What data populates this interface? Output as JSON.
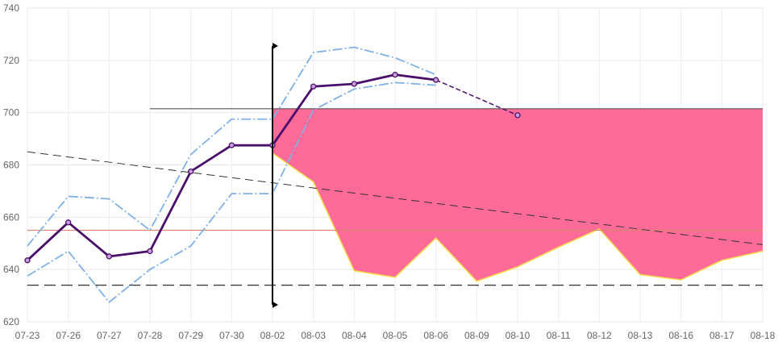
{
  "chart_data": {
    "type": "line",
    "categories": [
      "07-23",
      "07-26",
      "07-27",
      "07-28",
      "07-29",
      "07-30",
      "08-02",
      "08-03",
      "08-04",
      "08-05",
      "08-06",
      "08-09",
      "08-10",
      "08-11",
      "08-12",
      "08-13",
      "08-16",
      "08-17",
      "08-18"
    ],
    "ylim": [
      620,
      740
    ],
    "yticks": [
      620,
      640,
      660,
      680,
      700,
      720,
      740
    ],
    "grid": true,
    "series": [
      {
        "role": "main",
        "color": "#4a0f6b",
        "values": [
          643.5,
          658,
          645,
          647,
          677.5,
          687.5,
          687.5,
          710,
          711,
          714.5,
          712.5,
          null,
          null,
          null,
          null,
          null,
          null,
          null,
          null
        ]
      },
      {
        "role": "forecast",
        "color": "#4a0f6b",
        "values": [
          null,
          null,
          null,
          null,
          null,
          null,
          null,
          null,
          null,
          null,
          712.5,
          null,
          699,
          null,
          null,
          null,
          null,
          null,
          null
        ]
      },
      {
        "role": "band-upper",
        "color": "#7fb0e6",
        "values": [
          649,
          668,
          667,
          655,
          684,
          697.5,
          697.5,
          723,
          725,
          721,
          714.5,
          null,
          null,
          null,
          null,
          null,
          null,
          null,
          null
        ]
      },
      {
        "role": "band-lower",
        "color": "#7fb0e6",
        "values": [
          637.5,
          647,
          627.5,
          640,
          649,
          669,
          669,
          701,
          709,
          711.5,
          710.5,
          null,
          null,
          null,
          null,
          null,
          null,
          null,
          null
        ]
      },
      {
        "role": "filled-area-bottom",
        "color": "#ff6b98",
        "edge_color": "#f4e04d",
        "values": [
          null,
          null,
          null,
          null,
          null,
          null,
          684.5,
          673.5,
          639.5,
          637,
          652,
          635.5,
          641,
          648.5,
          655.5,
          638,
          636,
          643.5,
          647
        ]
      }
    ],
    "filled_area_top": 701.5,
    "reference_lines": [
      {
        "style": "solid",
        "color": "#555555",
        "value": 701.5,
        "from": "07-28",
        "to": "08-18"
      },
      {
        "style": "solid",
        "color": "#d9826e",
        "value": 655,
        "from": "07-23",
        "to": "08-18"
      },
      {
        "style": "dashed",
        "color": "#333333",
        "value": 634,
        "from": "07-23",
        "to": "08-18"
      },
      {
        "style": "dashed-trend",
        "color": "#333333",
        "start": 685,
        "end": 649.5,
        "from": "07-23",
        "to": "08-18"
      }
    ],
    "vertical_marker": {
      "category": "08-02",
      "from": 626.5,
      "to": 725.5,
      "color": "#000000"
    }
  }
}
